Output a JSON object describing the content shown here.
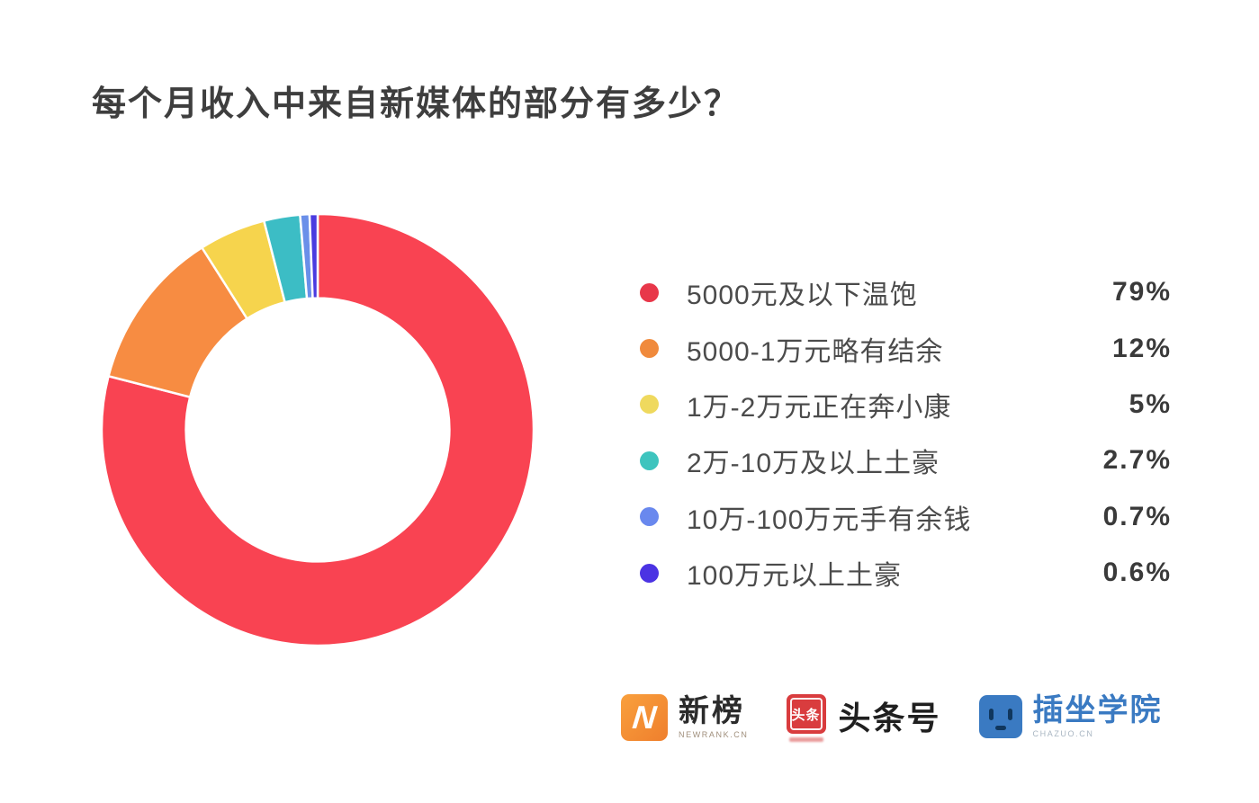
{
  "title": "每个月收入中来自新媒体的部分有多少？",
  "chart_data": {
    "type": "pie",
    "subtype": "donut",
    "title": "每个月收入中来自新媒体的部分有多少？",
    "categories": [
      "5000元及以下温饱",
      "5000-1万元略有结余",
      "1万-2万元正在奔小康",
      "2万-10万及以上土豪",
      "10万-100万元手有余钱",
      "100万元以上土豪"
    ],
    "values": [
      79,
      12,
      5,
      2.7,
      0.7,
      0.6
    ],
    "value_labels": [
      "79%",
      "12%",
      "5%",
      "2.7%",
      "0.7%",
      "0.6%"
    ],
    "colors": [
      "#f94352",
      "#f78c42",
      "#f6d44d",
      "#3cbdc5",
      "#6a8fe9",
      "#4a3be0"
    ],
    "start_angle_deg": -90,
    "direction": "clockwise",
    "inner_radius_ratio": 0.61,
    "separator_color": "#ffffff",
    "legend_position": "right"
  },
  "legend": {
    "dot_colors": [
      "#e8374a",
      "#f08a3c",
      "#efd95e",
      "#3ec4be",
      "#6988ee",
      "#4b33e3"
    ]
  },
  "footer": {
    "newrank": {
      "icon_letter": "N",
      "name": "新榜",
      "subtext": "NEWRANK.CN"
    },
    "toutiao": {
      "icon_text": "头条",
      "name": "头条号"
    },
    "chazuo": {
      "name": "插坐学院",
      "subtext": "CHAZUO.CN"
    }
  }
}
